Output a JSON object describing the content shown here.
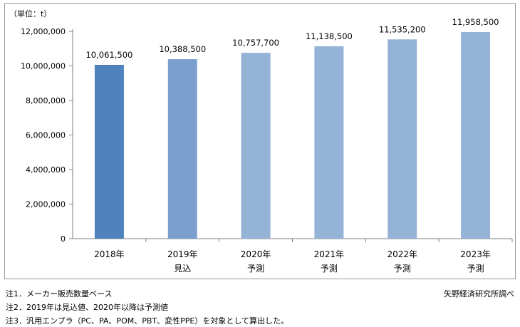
{
  "chart_data": {
    "type": "bar",
    "unit_label": "（単位：t）",
    "categories": [
      "2018年",
      "2019年",
      "2020年",
      "2021年",
      "2022年",
      "2023年"
    ],
    "sublabels": [
      "",
      "見込",
      "予測",
      "予測",
      "予測",
      "予測"
    ],
    "values": [
      10061500,
      10388500,
      10757700,
      11138500,
      11535200,
      11958500
    ],
    "value_labels": [
      "10,061,500",
      "10,388,500",
      "10,757,700",
      "11,138,500",
      "11,535,200",
      "11,958,500"
    ],
    "ylim": [
      0,
      12000000
    ],
    "yticks": [
      0,
      2000000,
      4000000,
      6000000,
      8000000,
      10000000,
      12000000
    ],
    "ytick_labels": [
      "0",
      "2,000,000",
      "4,000,000",
      "6,000,000",
      "8,000,000",
      "10,000,000",
      "12,000,000"
    ],
    "grid": false,
    "colors": [
      "#4f81bd",
      "#7ba0cf",
      "#95b3d7",
      "#95b3d7",
      "#95b3d7",
      "#95b3d7"
    ]
  },
  "notes": [
    "注1．メーカー販売数量ベース",
    "注2．2019年は見込値、2020年以降は予測値",
    "注3．汎用エンプラ（PC、PA、POM、PBT、変性PPE）を対象として算出した。"
  ],
  "source": "矢野経済研究所調べ"
}
